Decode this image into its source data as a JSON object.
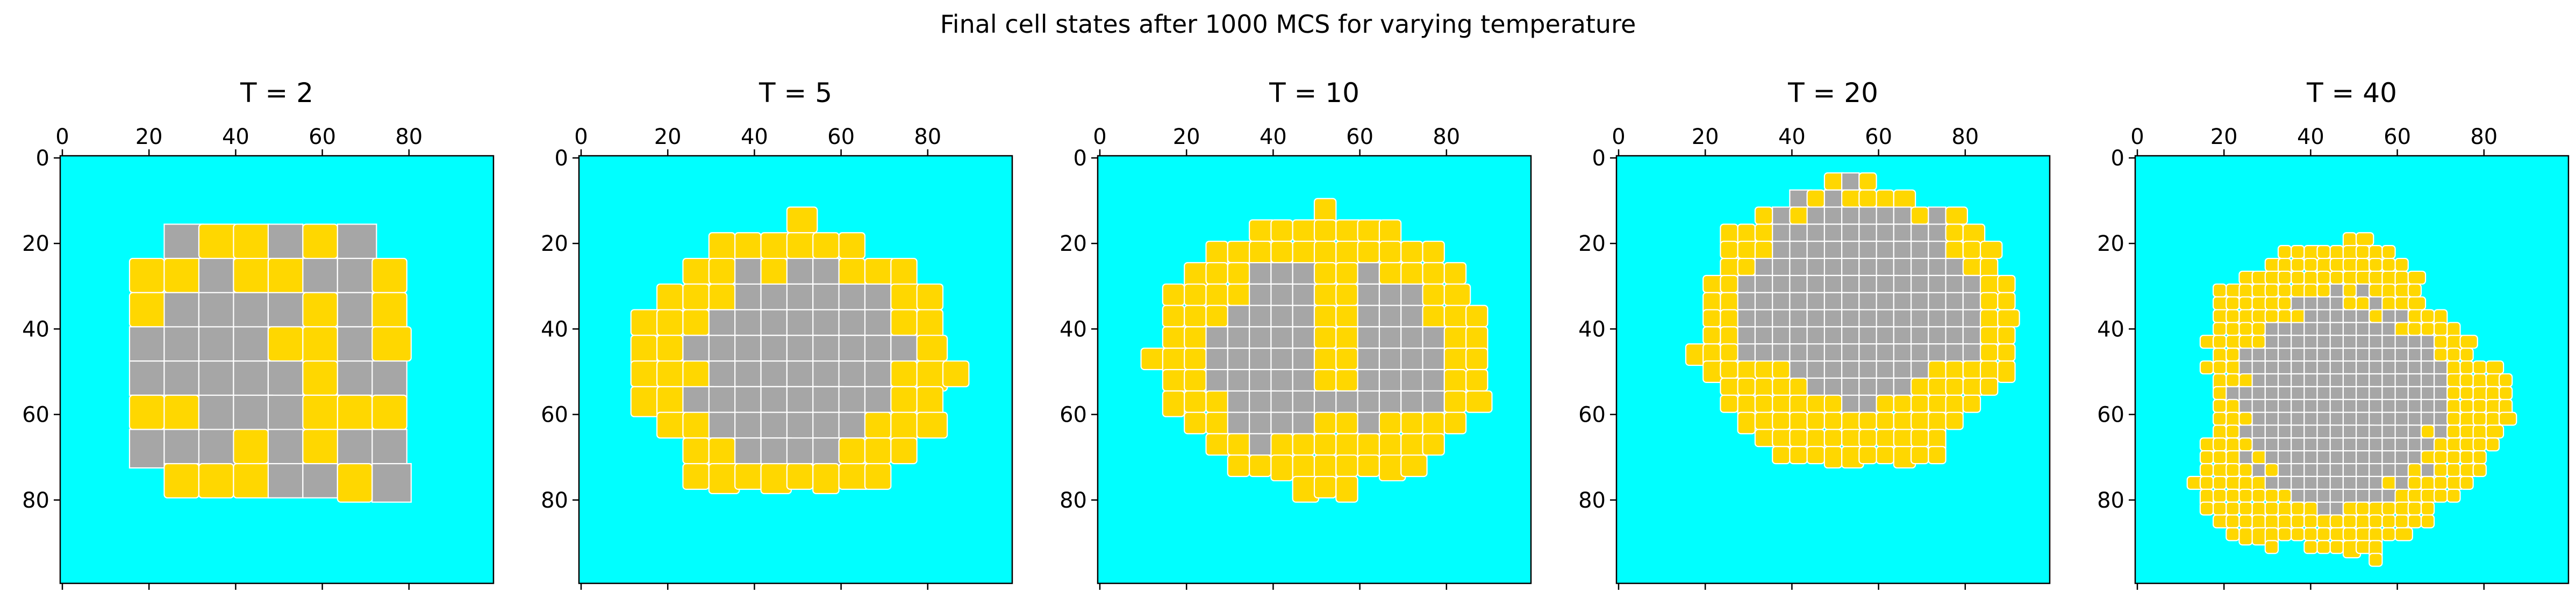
{
  "figure_title": "Final cell states after 1000 MCS for varying temperature",
  "colors": {
    "background_medium": "#00ffff",
    "cell_type_a": "#a6a6a6",
    "cell_type_b": "#ffd700",
    "cell_border": "#ffffff",
    "axes": "#000000"
  },
  "chart_data": [
    {
      "type": "heatmap",
      "title": "T = 2",
      "grid_size": 100,
      "x_ticks": [
        0,
        20,
        40,
        60,
        80
      ],
      "y_ticks": [
        0,
        20,
        40,
        60,
        80
      ],
      "xlim": [
        0,
        100
      ],
      "ylim": [
        100,
        0
      ],
      "x_axis_position": "top",
      "aggregate_shape": "rounded-square",
      "aggregate_extent": {
        "x": [
          18,
          80
        ],
        "y": [
          18,
          80
        ]
      },
      "cell_size_px_grid": 8,
      "yellow_pattern": "scattered"
    },
    {
      "type": "heatmap",
      "title": "T = 5",
      "grid_size": 100,
      "x_ticks": [
        0,
        20,
        40,
        60,
        80
      ],
      "y_ticks": [
        0,
        20,
        40,
        60,
        80
      ],
      "xlim": [
        0,
        100
      ],
      "ylim": [
        100,
        0
      ],
      "x_axis_position": "top",
      "aggregate_shape": "ellipse",
      "aggregate_extent": {
        "x": [
          12,
          87
        ],
        "y": [
          16,
          81
        ]
      },
      "cell_size_px_grid": 6,
      "yellow_pattern": "outer-ring"
    },
    {
      "type": "heatmap",
      "title": "T = 10",
      "grid_size": 100,
      "x_ticks": [
        0,
        20,
        40,
        60,
        80
      ],
      "y_ticks": [
        0,
        20,
        40,
        60,
        80
      ],
      "xlim": [
        0,
        100
      ],
      "ylim": [
        100,
        0
      ],
      "x_axis_position": "top",
      "aggregate_shape": "ellipse",
      "aggregate_extent": {
        "x": [
          13,
          91
        ],
        "y": [
          14,
          79
        ]
      },
      "cell_size_px_grid": 5,
      "yellow_pattern": "ring-and-band"
    },
    {
      "type": "heatmap",
      "title": "T = 20",
      "grid_size": 100,
      "x_ticks": [
        0,
        20,
        40,
        60,
        80
      ],
      "y_ticks": [
        0,
        20,
        40,
        60,
        80
      ],
      "xlim": [
        0,
        100
      ],
      "ylim": [
        100,
        0
      ],
      "x_axis_position": "top",
      "aggregate_shape": "ellipse",
      "aggregate_extent": {
        "x": [
          19,
          92
        ],
        "y": [
          6,
          74
        ]
      },
      "cell_size_px_grid": 4,
      "yellow_pattern": "outer-ring-lower"
    },
    {
      "type": "heatmap",
      "title": "T = 40",
      "grid_size": 100,
      "x_ticks": [
        0,
        20,
        40,
        60,
        80
      ],
      "y_ticks": [
        0,
        20,
        40,
        60,
        80
      ],
      "xlim": [
        0,
        100
      ],
      "ylim": [
        100,
        0
      ],
      "x_axis_position": "top",
      "aggregate_shape": "irregular",
      "aggregate_extent": {
        "x": [
          13,
          82
        ],
        "y": [
          21,
          95
        ]
      },
      "cell_size_px_grid": 3,
      "yellow_pattern": "outer-ring"
    }
  ]
}
